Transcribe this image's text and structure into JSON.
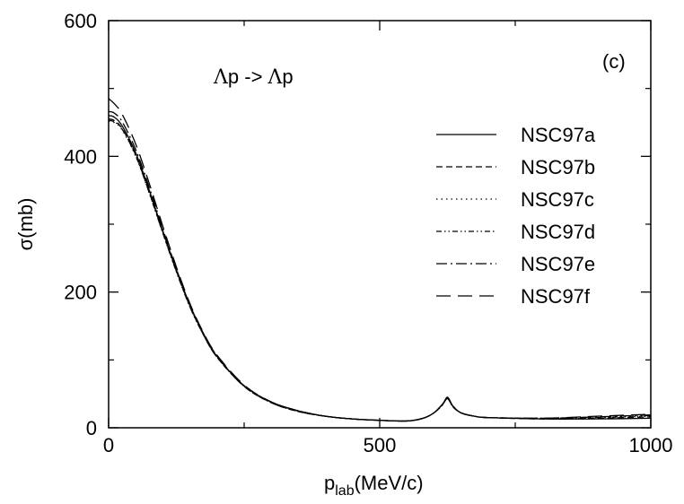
{
  "chart_data": {
    "type": "line",
    "xlabel": {
      "main": "p",
      "sub": "lab",
      "rest": "(MeV/c)"
    },
    "ylabel": "σ(mb)",
    "xlim": [
      0,
      1000
    ],
    "ylim": [
      0,
      600
    ],
    "xticks": [
      0,
      500,
      1000
    ],
    "xtick_labels": [
      "0",
      "500",
      "1000"
    ],
    "yticks": [
      0,
      200,
      400,
      600
    ],
    "ytick_labels": [
      "0",
      "200",
      "400",
      "600"
    ],
    "grid": false,
    "legend_position": "right",
    "annotations": {
      "reaction": {
        "lambda1": "Λ",
        "mid": "p -> ",
        "lambda2": "Λ",
        "end": "p"
      },
      "panel": "(c)"
    },
    "series": [
      {
        "name": "NSC97a",
        "style": "solid",
        "x": [
          0,
          10,
          25,
          50,
          75,
          100,
          125,
          150,
          175,
          200,
          250,
          300,
          350,
          400,
          450,
          500,
          550,
          580,
          600,
          615,
          625,
          635,
          650,
          675,
          700,
          800,
          900,
          1000
        ],
        "y": [
          460,
          458,
          445,
          405,
          350,
          290,
          232,
          180,
          138,
          105,
          62,
          38,
          25,
          17,
          13,
          11,
          10,
          14,
          22,
          34,
          44,
          32,
          22,
          17,
          15,
          13,
          13,
          14
        ]
      },
      {
        "name": "NSC97b",
        "style": "dashed",
        "x": [
          0,
          10,
          25,
          50,
          75,
          100,
          125,
          150,
          175,
          200,
          250,
          300,
          350,
          400,
          450,
          500,
          550,
          580,
          600,
          615,
          625,
          635,
          650,
          675,
          700,
          800,
          900,
          1000
        ],
        "y": [
          455,
          453,
          441,
          402,
          347,
          288,
          231,
          179,
          137,
          104,
          61,
          37,
          24,
          17,
          13,
          11,
          10,
          14,
          22,
          33,
          43,
          31,
          22,
          17,
          15,
          13,
          14,
          16
        ]
      },
      {
        "name": "NSC97c",
        "style": "dotted",
        "x": [
          0,
          10,
          25,
          50,
          75,
          100,
          125,
          150,
          175,
          200,
          250,
          300,
          350,
          400,
          450,
          500,
          550,
          580,
          600,
          615,
          625,
          635,
          650,
          675,
          700,
          800,
          900,
          1000
        ],
        "y": [
          452,
          450,
          439,
          400,
          346,
          287,
          230,
          178,
          137,
          104,
          61,
          37,
          24,
          17,
          13,
          11,
          10,
          14,
          22,
          33,
          43,
          31,
          22,
          17,
          15,
          14,
          15,
          17
        ]
      },
      {
        "name": "NSC97d",
        "style": "dash-dot-dot",
        "x": [
          0,
          10,
          25,
          50,
          75,
          100,
          125,
          150,
          175,
          200,
          250,
          300,
          350,
          400,
          450,
          500,
          550,
          580,
          600,
          615,
          625,
          635,
          650,
          675,
          700,
          800,
          900,
          1000
        ],
        "y": [
          453,
          451,
          440,
          401,
          346,
          287,
          230,
          178,
          137,
          104,
          61,
          37,
          24,
          17,
          13,
          11,
          10,
          14,
          22,
          33,
          43,
          31,
          22,
          17,
          15,
          14,
          15,
          18
        ]
      },
      {
        "name": "NSC97e",
        "style": "dash-dot",
        "x": [
          0,
          10,
          25,
          50,
          75,
          100,
          125,
          150,
          175,
          200,
          250,
          300,
          350,
          400,
          450,
          500,
          550,
          580,
          600,
          615,
          625,
          635,
          650,
          675,
          700,
          800,
          900,
          1000
        ],
        "y": [
          466,
          464,
          451,
          410,
          354,
          293,
          234,
          181,
          139,
          106,
          62,
          38,
          25,
          17,
          13,
          11,
          10,
          14,
          22,
          34,
          44,
          32,
          22,
          17,
          15,
          14,
          16,
          19
        ]
      },
      {
        "name": "NSC97f",
        "style": "long-dash",
        "x": [
          0,
          10,
          25,
          50,
          75,
          100,
          125,
          150,
          175,
          200,
          250,
          300,
          350,
          400,
          450,
          500,
          550,
          580,
          600,
          615,
          625,
          635,
          650,
          675,
          700,
          800,
          900,
          1000
        ],
        "y": [
          485,
          478,
          462,
          418,
          360,
          297,
          237,
          183,
          140,
          107,
          63,
          38,
          25,
          17,
          13,
          11,
          10,
          14,
          22,
          34,
          45,
          32,
          22,
          17,
          15,
          14,
          17,
          20
        ]
      }
    ]
  }
}
